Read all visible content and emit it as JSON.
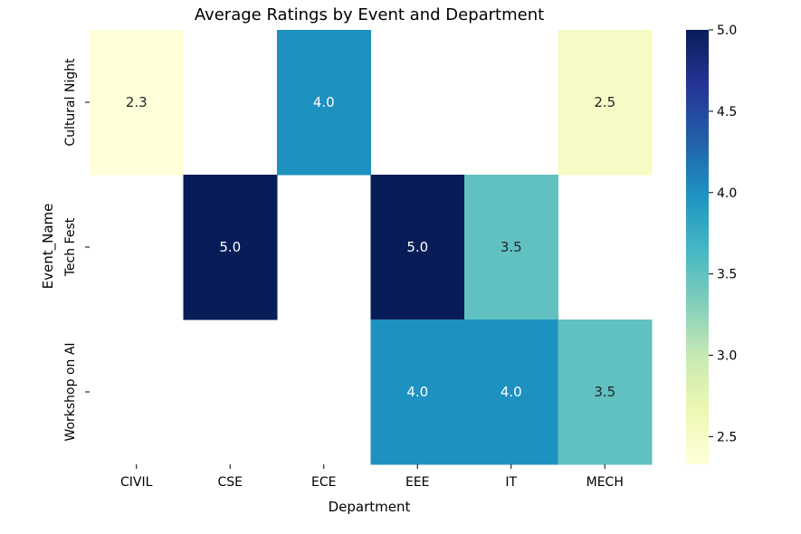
{
  "chart_data": {
    "type": "heatmap",
    "title": "Average Ratings by Event and Department",
    "xlabel": "Department",
    "ylabel": "Event_Name",
    "x_categories": [
      "CIVIL",
      "CSE",
      "ECE",
      "EEE",
      "IT",
      "MECH"
    ],
    "y_categories": [
      "Cultural Night",
      "Tech Fest",
      "Workshop on AI"
    ],
    "values": [
      [
        2.3,
        null,
        4.0,
        null,
        null,
        2.5
      ],
      [
        null,
        5.0,
        null,
        5.0,
        3.5,
        null
      ],
      [
        null,
        null,
        null,
        4.0,
        4.0,
        3.5
      ]
    ],
    "value_labels": [
      [
        "2.3",
        "",
        "4.0",
        "",
        "",
        "2.5"
      ],
      [
        "",
        "5.0",
        "",
        "5.0",
        "3.5",
        ""
      ],
      [
        "",
        "",
        "",
        "4.0",
        "4.0",
        "3.5"
      ]
    ],
    "colorbar": {
      "colormap": "YlGnBu",
      "range": [
        2.33,
        5.0
      ],
      "ticks": [
        2.5,
        3.0,
        3.5,
        4.0,
        4.5,
        5.0
      ],
      "tick_labels": [
        "2.5",
        "3.0",
        "3.5",
        "4.0",
        "4.5",
        "5.0"
      ]
    },
    "annotations": true,
    "grid": false
  }
}
